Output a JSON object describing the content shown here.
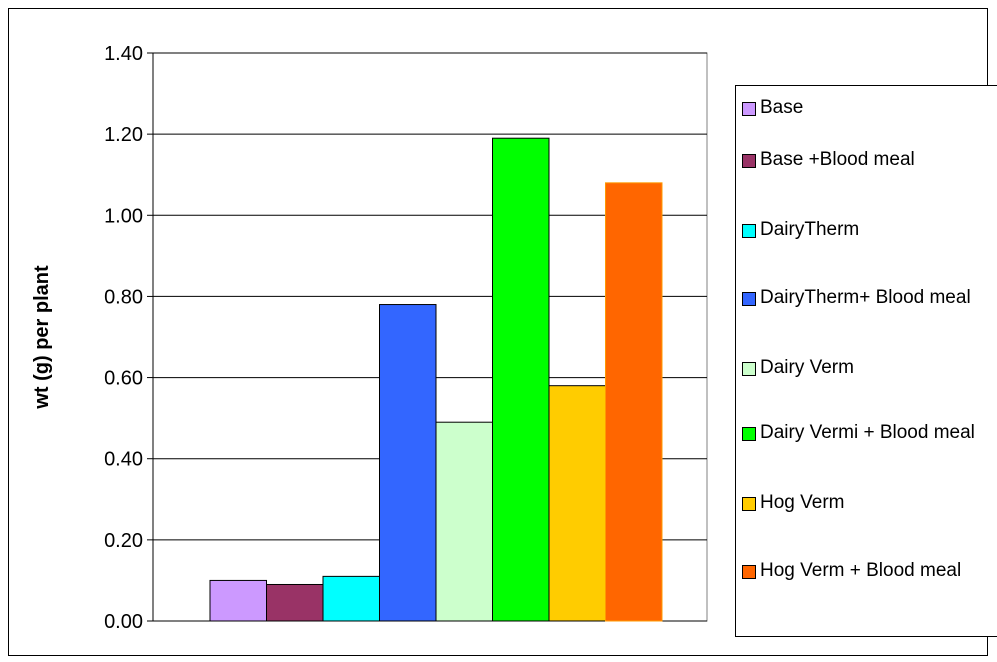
{
  "chart_data": {
    "type": "bar",
    "ylabel": "wt (g) per plant",
    "xlabel": "",
    "ylim": [
      0,
      1.4
    ],
    "yticks": [
      "0.00",
      "0.20",
      "0.40",
      "0.60",
      "0.80",
      "1.00",
      "1.20",
      "1.40"
    ],
    "grid": true,
    "legend_position": "right",
    "series": [
      {
        "name": "Base",
        "value": 0.1,
        "color": "#cc99ff"
      },
      {
        "name": "Base +Blood meal",
        "value": 0.09,
        "color": "#993366"
      },
      {
        "name": "DairyTherm",
        "value": 0.11,
        "color": "#00ffff"
      },
      {
        "name": "DairyTherm+ Blood meal",
        "value": 0.78,
        "color": "#3366ff"
      },
      {
        "name": "Dairy Verm",
        "value": 0.49,
        "color": "#ccffcc"
      },
      {
        "name": "Dairy Vermi + Blood meal",
        "value": 1.19,
        "color": "#00ff00"
      },
      {
        "name": "Hog Verm",
        "value": 0.58,
        "color": "#ffcc00"
      },
      {
        "name": "Hog Verm + Blood meal",
        "value": 1.08,
        "color": "#ff6600"
      }
    ]
  }
}
